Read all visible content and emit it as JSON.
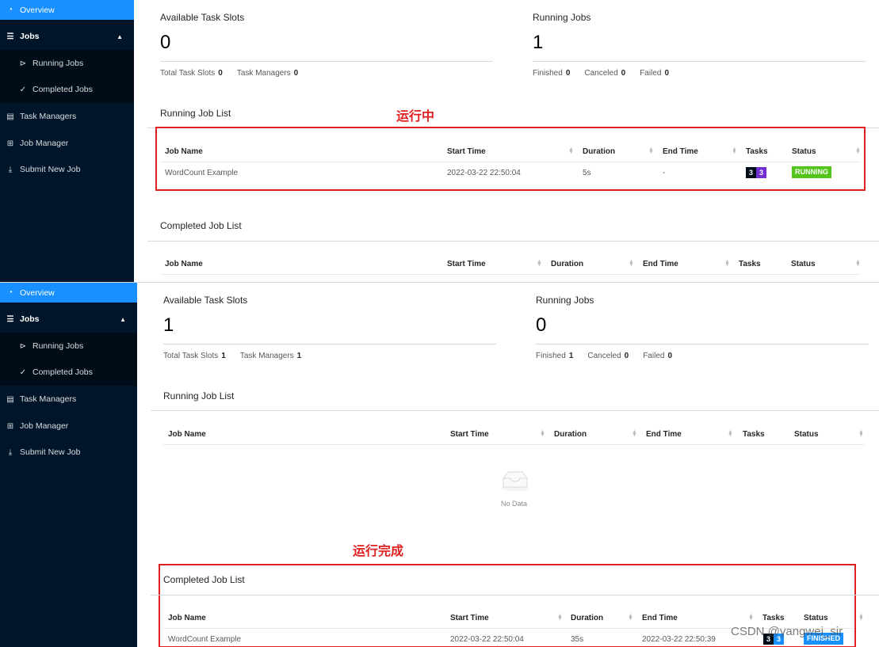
{
  "nav": {
    "overview": "Overview",
    "jobs": "Jobs",
    "running_jobs": "Running Jobs",
    "completed_jobs": "Completed Jobs",
    "task_managers": "Task Managers",
    "job_manager": "Job Manager",
    "submit_new_job": "Submit New Job"
  },
  "labels": {
    "available_task_slots": "Available Task Slots",
    "running_jobs": "Running Jobs",
    "total_task_slots": "Total Task Slots",
    "task_managers": "Task Managers",
    "finished": "Finished",
    "canceled": "Canceled",
    "failed": "Failed",
    "running_job_list": "Running Job List",
    "completed_job_list": "Completed Job List",
    "no_data": "No Data"
  },
  "columns": {
    "job_name": "Job Name",
    "start_time": "Start Time",
    "duration": "Duration",
    "end_time": "End Time",
    "tasks": "Tasks",
    "status": "Status"
  },
  "screen1": {
    "available_task_slots": "0",
    "running_jobs": "1",
    "total_task_slots": "0",
    "task_managers": "0",
    "finished": "0",
    "canceled": "0",
    "failed": "0",
    "annotation": "运行中",
    "running_row": {
      "job_name": "WordCount Example",
      "start_time": "2022-03-22 22:50:04",
      "duration": "5s",
      "end_time": "-",
      "tasks_a": "3",
      "tasks_b": "3",
      "status": "RUNNING"
    }
  },
  "screen2": {
    "available_task_slots": "1",
    "running_jobs": "0",
    "total_task_slots": "1",
    "task_managers": "1",
    "finished": "1",
    "canceled": "0",
    "failed": "0",
    "annotation": "运行完成",
    "completed_row": {
      "job_name": "WordCount Example",
      "start_time": "2022-03-22 22:50:04",
      "duration": "35s",
      "end_time": "2022-03-22 22:50:39",
      "tasks_a": "3",
      "tasks_b": "3",
      "status": "FINISHED"
    }
  },
  "watermark": "CSDN @yangwei_sir",
  "colors": {
    "sidebar": "#001529",
    "active": "#1890ff",
    "running": "#52c41a",
    "finished": "#1890ff",
    "annotation": "#e02020"
  }
}
